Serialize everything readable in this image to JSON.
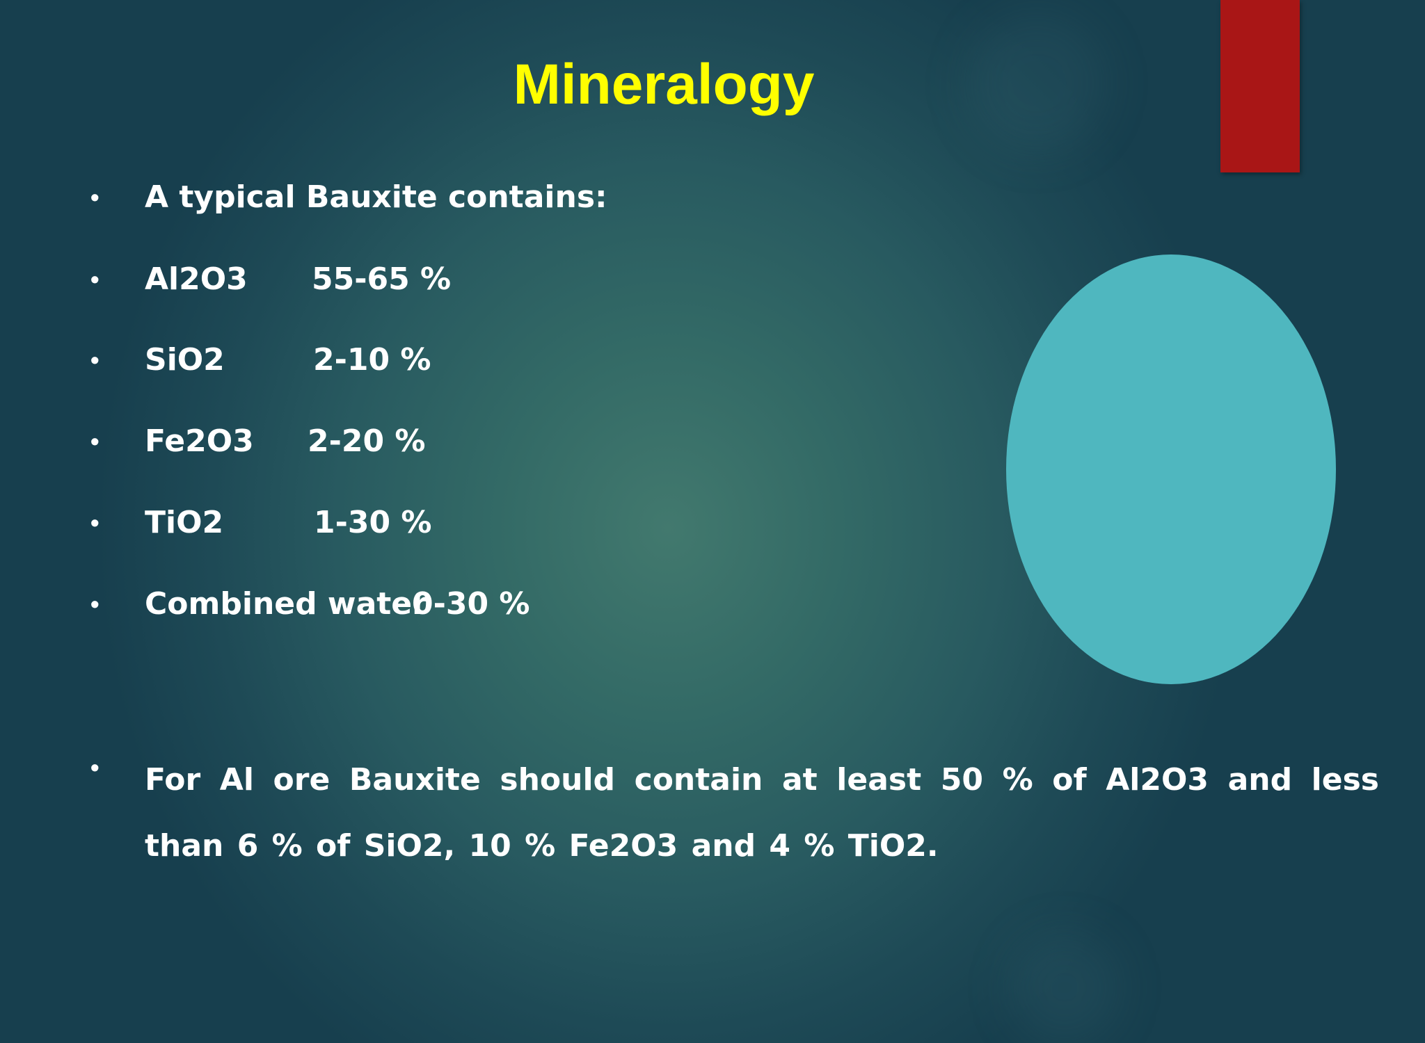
{
  "slide": {
    "title": "Mineralogy",
    "colors": {
      "title": "#ffff00",
      "text": "#ffffff",
      "accent_bar": "#a91616",
      "ellipse": "#4fb7bf",
      "background": "#2a5f60"
    },
    "bullets": [
      {
        "text": "A typical Bauxite contains:",
        "value": ""
      },
      {
        "text": "Al2O3",
        "value": "55-65 %"
      },
      {
        "text": "SiO2",
        "value": "2-10 %"
      },
      {
        "text": "Fe2O3",
        "value": "2-20 %"
      },
      {
        "text": "TiO2",
        "value": "1-30 %"
      },
      {
        "text": "Combined water",
        "value": "0-30 %"
      }
    ],
    "note": "For Al ore Bauxite should contain at least 50 % of Al2O3 and less than 6 % of SiO2, 10 % Fe2O3 and 4 % TiO2.",
    "bullet_glyph": "•"
  }
}
